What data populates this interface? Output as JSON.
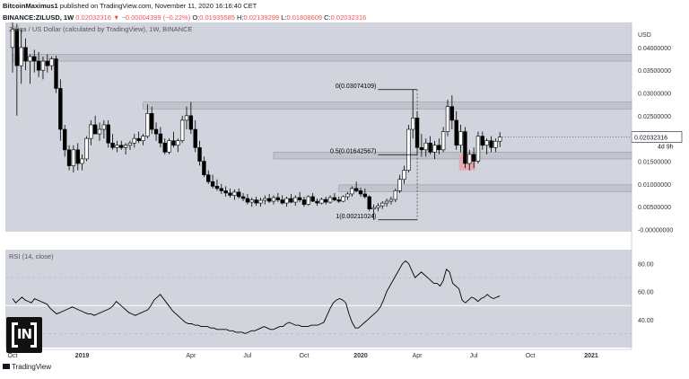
{
  "header": {
    "author": "BitcoinMaximus1",
    "published": "published on TradingView.com, November 11, 2020 16:16:40 CET",
    "symbol": "BINANCE:ZILUSD, 1W",
    "last": "0.02032316",
    "change": "▼ −0.00004399 (−0.22%)",
    "o_label": "O:",
    "o_value": "0.01935585",
    "h_label": "H:",
    "h_value": "0.02139299",
    "l_label": "L:",
    "l_value": "0.01808609",
    "c_label": "C:",
    "c_value": "0.02032316"
  },
  "colors": {
    "pane_bg": "#d1d4dc",
    "up_body": "#ffffff",
    "down_body": "#000000",
    "candle_outline": "#000000",
    "zone_fill": "#c1c4cc",
    "red_box": "#e9a3aa",
    "line": "#000000"
  },
  "chart_data": [
    {
      "type": "candlestick",
      "title": "Zilliqa / US Dollar (calculated by TradingView), 1W, BINANCE",
      "y_axis_label": "USD",
      "yticks": [
        "0.04000000",
        "0.03500000",
        "0.03000000",
        "0.02500000",
        "0.01500000",
        "0.01000000",
        "0.00500000",
        "-0.00000000"
      ],
      "ylim": [
        -0.0005,
        0.0455
      ],
      "price_label": "0.02032316",
      "countdown_label": "4d 9h",
      "xticks": [
        "Oct",
        "2019",
        "Apr",
        "Jul",
        "Oct",
        "2020",
        "Apr",
        "Jul",
        "Oct",
        "2021"
      ],
      "xticks_week": [
        0,
        16,
        41,
        54,
        67,
        80,
        93,
        106,
        119,
        133
      ],
      "candles": [
        {
          "o": 0.04,
          "h": 0.0455,
          "l": 0.0345,
          "c": 0.044
        },
        {
          "o": 0.044,
          "h": 0.0452,
          "l": 0.025,
          "c": 0.036
        },
        {
          "o": 0.036,
          "h": 0.044,
          "l": 0.032,
          "c": 0.04
        },
        {
          "o": 0.04,
          "h": 0.042,
          "l": 0.035,
          "c": 0.037
        },
        {
          "o": 0.037,
          "h": 0.0385,
          "l": 0.032,
          "c": 0.038
        },
        {
          "o": 0.038,
          "h": 0.0395,
          "l": 0.0345,
          "c": 0.037
        },
        {
          "o": 0.037,
          "h": 0.039,
          "l": 0.0335,
          "c": 0.035
        },
        {
          "o": 0.035,
          "h": 0.038,
          "l": 0.033,
          "c": 0.037
        },
        {
          "o": 0.037,
          "h": 0.0385,
          "l": 0.0345,
          "c": 0.036
        },
        {
          "o": 0.036,
          "h": 0.038,
          "l": 0.035,
          "c": 0.0375
        },
        {
          "o": 0.0375,
          "h": 0.0382,
          "l": 0.03,
          "c": 0.031
        },
        {
          "o": 0.031,
          "h": 0.033,
          "l": 0.0195,
          "c": 0.022
        },
        {
          "o": 0.022,
          "h": 0.023,
          "l": 0.016,
          "c": 0.0175
        },
        {
          "o": 0.0175,
          "h": 0.0185,
          "l": 0.013,
          "c": 0.014
        },
        {
          "o": 0.014,
          "h": 0.0185,
          "l": 0.0125,
          "c": 0.0175
        },
        {
          "o": 0.0175,
          "h": 0.019,
          "l": 0.013,
          "c": 0.0145
        },
        {
          "o": 0.0145,
          "h": 0.0165,
          "l": 0.013,
          "c": 0.0155
        },
        {
          "o": 0.0155,
          "h": 0.0205,
          "l": 0.015,
          "c": 0.02
        },
        {
          "o": 0.02,
          "h": 0.024,
          "l": 0.0185,
          "c": 0.023
        },
        {
          "o": 0.023,
          "h": 0.025,
          "l": 0.021,
          "c": 0.021
        },
        {
          "o": 0.021,
          "h": 0.0235,
          "l": 0.0195,
          "c": 0.022
        },
        {
          "o": 0.022,
          "h": 0.024,
          "l": 0.02,
          "c": 0.023
        },
        {
          "o": 0.023,
          "h": 0.024,
          "l": 0.018,
          "c": 0.019
        },
        {
          "o": 0.019,
          "h": 0.021,
          "l": 0.0175,
          "c": 0.018
        },
        {
          "o": 0.018,
          "h": 0.0195,
          "l": 0.017,
          "c": 0.0185
        },
        {
          "o": 0.0185,
          "h": 0.0195,
          "l": 0.0175,
          "c": 0.018
        },
        {
          "o": 0.018,
          "h": 0.019,
          "l": 0.0165,
          "c": 0.0185
        },
        {
          "o": 0.0185,
          "h": 0.0195,
          "l": 0.0175,
          "c": 0.019
        },
        {
          "o": 0.019,
          "h": 0.021,
          "l": 0.018,
          "c": 0.02
        },
        {
          "o": 0.02,
          "h": 0.0215,
          "l": 0.019,
          "c": 0.0195
        },
        {
          "o": 0.0195,
          "h": 0.021,
          "l": 0.0185,
          "c": 0.0205
        },
        {
          "o": 0.0205,
          "h": 0.0275,
          "l": 0.02,
          "c": 0.0255
        },
        {
          "o": 0.0255,
          "h": 0.027,
          "l": 0.021,
          "c": 0.022
        },
        {
          "o": 0.022,
          "h": 0.0235,
          "l": 0.0195,
          "c": 0.021
        },
        {
          "o": 0.021,
          "h": 0.0225,
          "l": 0.018,
          "c": 0.019
        },
        {
          "o": 0.019,
          "h": 0.02,
          "l": 0.0165,
          "c": 0.017
        },
        {
          "o": 0.017,
          "h": 0.02,
          "l": 0.0165,
          "c": 0.0195
        },
        {
          "o": 0.0195,
          "h": 0.0215,
          "l": 0.018,
          "c": 0.0185
        },
        {
          "o": 0.0185,
          "h": 0.02,
          "l": 0.017,
          "c": 0.0195
        },
        {
          "o": 0.0195,
          "h": 0.025,
          "l": 0.019,
          "c": 0.024
        },
        {
          "o": 0.024,
          "h": 0.027,
          "l": 0.022,
          "c": 0.025
        },
        {
          "o": 0.025,
          "h": 0.028,
          "l": 0.021,
          "c": 0.022
        },
        {
          "o": 0.022,
          "h": 0.024,
          "l": 0.017,
          "c": 0.018
        },
        {
          "o": 0.018,
          "h": 0.0195,
          "l": 0.014,
          "c": 0.015
        },
        {
          "o": 0.015,
          "h": 0.016,
          "l": 0.0115,
          "c": 0.012
        },
        {
          "o": 0.012,
          "h": 0.013,
          "l": 0.01,
          "c": 0.0105
        },
        {
          "o": 0.0105,
          "h": 0.012,
          "l": 0.009,
          "c": 0.0095
        },
        {
          "o": 0.0095,
          "h": 0.011,
          "l": 0.0085,
          "c": 0.009
        },
        {
          "o": 0.009,
          "h": 0.01,
          "l": 0.0078,
          "c": 0.0085
        },
        {
          "o": 0.0085,
          "h": 0.0095,
          "l": 0.0072,
          "c": 0.008
        },
        {
          "o": 0.008,
          "h": 0.009,
          "l": 0.007,
          "c": 0.0075
        },
        {
          "o": 0.0075,
          "h": 0.0088,
          "l": 0.0065,
          "c": 0.0082
        },
        {
          "o": 0.0082,
          "h": 0.009,
          "l": 0.0068,
          "c": 0.0072
        },
        {
          "o": 0.0072,
          "h": 0.008,
          "l": 0.0062,
          "c": 0.0068
        },
        {
          "o": 0.0068,
          "h": 0.0078,
          "l": 0.0055,
          "c": 0.006
        },
        {
          "o": 0.006,
          "h": 0.007,
          "l": 0.005,
          "c": 0.0065
        },
        {
          "o": 0.0065,
          "h": 0.0072,
          "l": 0.0052,
          "c": 0.0058
        },
        {
          "o": 0.0058,
          "h": 0.007,
          "l": 0.005,
          "c": 0.0064
        },
        {
          "o": 0.0064,
          "h": 0.0075,
          "l": 0.0055,
          "c": 0.0068
        },
        {
          "o": 0.0068,
          "h": 0.0078,
          "l": 0.0058,
          "c": 0.0062
        },
        {
          "o": 0.0062,
          "h": 0.0075,
          "l": 0.0055,
          "c": 0.007
        },
        {
          "o": 0.007,
          "h": 0.008,
          "l": 0.006,
          "c": 0.0065
        },
        {
          "o": 0.0065,
          "h": 0.0075,
          "l": 0.0055,
          "c": 0.0058
        },
        {
          "o": 0.0058,
          "h": 0.0072,
          "l": 0.005,
          "c": 0.0068
        },
        {
          "o": 0.0068,
          "h": 0.0078,
          "l": 0.0058,
          "c": 0.006
        },
        {
          "o": 0.006,
          "h": 0.0075,
          "l": 0.0052,
          "c": 0.007
        },
        {
          "o": 0.007,
          "h": 0.0082,
          "l": 0.006,
          "c": 0.0065
        },
        {
          "o": 0.0065,
          "h": 0.0072,
          "l": 0.005,
          "c": 0.0055
        },
        {
          "o": 0.0055,
          "h": 0.0075,
          "l": 0.0052,
          "c": 0.0072
        },
        {
          "o": 0.0072,
          "h": 0.008,
          "l": 0.006,
          "c": 0.0062
        },
        {
          "o": 0.0062,
          "h": 0.0068,
          "l": 0.0052,
          "c": 0.0058
        },
        {
          "o": 0.0058,
          "h": 0.007,
          "l": 0.0055,
          "c": 0.0066
        },
        {
          "o": 0.0066,
          "h": 0.0072,
          "l": 0.0055,
          "c": 0.006
        },
        {
          "o": 0.006,
          "h": 0.0075,
          "l": 0.0057,
          "c": 0.007
        },
        {
          "o": 0.007,
          "h": 0.008,
          "l": 0.0062,
          "c": 0.0065
        },
        {
          "o": 0.0065,
          "h": 0.0072,
          "l": 0.0058,
          "c": 0.0062
        },
        {
          "o": 0.0062,
          "h": 0.0075,
          "l": 0.006,
          "c": 0.0072
        },
        {
          "o": 0.0072,
          "h": 0.0082,
          "l": 0.0065,
          "c": 0.0078
        },
        {
          "o": 0.0078,
          "h": 0.0095,
          "l": 0.0072,
          "c": 0.009
        },
        {
          "o": 0.009,
          "h": 0.0105,
          "l": 0.0082,
          "c": 0.0085
        },
        {
          "o": 0.0085,
          "h": 0.0092,
          "l": 0.0072,
          "c": 0.0078
        },
        {
          "o": 0.0078,
          "h": 0.009,
          "l": 0.0068,
          "c": 0.0072
        },
        {
          "o": 0.0072,
          "h": 0.0075,
          "l": 0.004,
          "c": 0.0045
        },
        {
          "o": 0.0045,
          "h": 0.0055,
          "l": 0.0021,
          "c": 0.0048
        },
        {
          "o": 0.0048,
          "h": 0.0058,
          "l": 0.004,
          "c": 0.0052
        },
        {
          "o": 0.0052,
          "h": 0.0062,
          "l": 0.0045,
          "c": 0.0058
        },
        {
          "o": 0.0058,
          "h": 0.0068,
          "l": 0.005,
          "c": 0.0062
        },
        {
          "o": 0.0062,
          "h": 0.0072,
          "l": 0.0055,
          "c": 0.0066
        },
        {
          "o": 0.0066,
          "h": 0.009,
          "l": 0.006,
          "c": 0.0085
        },
        {
          "o": 0.0085,
          "h": 0.012,
          "l": 0.008,
          "c": 0.011
        },
        {
          "o": 0.011,
          "h": 0.014,
          "l": 0.01,
          "c": 0.013
        },
        {
          "o": 0.013,
          "h": 0.023,
          "l": 0.0125,
          "c": 0.022
        },
        {
          "o": 0.022,
          "h": 0.0307,
          "l": 0.02,
          "c": 0.0245
        },
        {
          "o": 0.0245,
          "h": 0.026,
          "l": 0.0165,
          "c": 0.018
        },
        {
          "o": 0.018,
          "h": 0.021,
          "l": 0.016,
          "c": 0.0175
        },
        {
          "o": 0.0175,
          "h": 0.02,
          "l": 0.016,
          "c": 0.019
        },
        {
          "o": 0.019,
          "h": 0.0205,
          "l": 0.0165,
          "c": 0.017
        },
        {
          "o": 0.017,
          "h": 0.0195,
          "l": 0.0155,
          "c": 0.0185
        },
        {
          "o": 0.0185,
          "h": 0.02,
          "l": 0.0165,
          "c": 0.0175
        },
        {
          "o": 0.0175,
          "h": 0.0225,
          "l": 0.017,
          "c": 0.0215
        },
        {
          "o": 0.0215,
          "h": 0.0285,
          "l": 0.0205,
          "c": 0.027
        },
        {
          "o": 0.027,
          "h": 0.0295,
          "l": 0.022,
          "c": 0.024
        },
        {
          "o": 0.024,
          "h": 0.026,
          "l": 0.0175,
          "c": 0.0185
        },
        {
          "o": 0.0185,
          "h": 0.023,
          "l": 0.017,
          "c": 0.0215
        },
        {
          "o": 0.0215,
          "h": 0.0225,
          "l": 0.0135,
          "c": 0.0145
        },
        {
          "o": 0.0145,
          "h": 0.0175,
          "l": 0.013,
          "c": 0.0165
        },
        {
          "o": 0.0165,
          "h": 0.018,
          "l": 0.0135,
          "c": 0.015
        },
        {
          "o": 0.015,
          "h": 0.0215,
          "l": 0.0145,
          "c": 0.0205
        },
        {
          "o": 0.0205,
          "h": 0.0215,
          "l": 0.0175,
          "c": 0.0185
        },
        {
          "o": 0.0185,
          "h": 0.02,
          "l": 0.0165,
          "c": 0.0195
        },
        {
          "o": 0.0195,
          "h": 0.0205,
          "l": 0.017,
          "c": 0.018
        },
        {
          "o": 0.018,
          "h": 0.02,
          "l": 0.017,
          "c": 0.0194
        },
        {
          "o": 0.0194,
          "h": 0.0214,
          "l": 0.0181,
          "c": 0.0203
        }
      ],
      "zones": [
        {
          "from": 0.037,
          "to": 0.0385,
          "start_week": 0
        },
        {
          "from": 0.0265,
          "to": 0.028,
          "start_week": 30
        },
        {
          "from": 0.0155,
          "to": 0.017,
          "start_week": 60
        },
        {
          "from": 0.0083,
          "to": 0.0098,
          "start_week": 75
        }
      ],
      "annotations": [
        {
          "text": "0(0.03074109)",
          "price": 0.03074109,
          "from_week": 84,
          "to_week": 93
        },
        {
          "text": "0.5(0.01642567)",
          "price": 0.01642567,
          "from_week": 84,
          "to_week": 93
        },
        {
          "text": "1(0.00211024)",
          "price": 0.00211024,
          "from_week": 84,
          "to_week": 93
        }
      ],
      "red_box": {
        "week_from": 103,
        "week_to": 106,
        "price_from": 0.013,
        "price_to": 0.0165
      }
    },
    {
      "type": "line",
      "title": "RSI (14, close)",
      "yticks": [
        80,
        60,
        40
      ],
      "ylim": [
        20,
        90
      ],
      "levels": [
        70,
        50,
        30
      ],
      "values": [
        55,
        52,
        54,
        56,
        54,
        53,
        52,
        55,
        54,
        53,
        52,
        51,
        48,
        46,
        44,
        45,
        46,
        47,
        48,
        49,
        48,
        47,
        46,
        45,
        44,
        44,
        43,
        44,
        45,
        46,
        47,
        48,
        50,
        53,
        51,
        49,
        47,
        45,
        44,
        43,
        44,
        45,
        46,
        47,
        50,
        54,
        56,
        58,
        55,
        52,
        49,
        46,
        44,
        42,
        40,
        38,
        37,
        37,
        36,
        36,
        35,
        35,
        35,
        34,
        34,
        33,
        33,
        33,
        33,
        32,
        32,
        31,
        31,
        31,
        30,
        31,
        32,
        32,
        33,
        34,
        35,
        34,
        33,
        33,
        34,
        35,
        35,
        37,
        38,
        37,
        36,
        36,
        35,
        35,
        35,
        36,
        36,
        36,
        37,
        38,
        43,
        48,
        52,
        54,
        55,
        54,
        52,
        44,
        38,
        34,
        34,
        36,
        38,
        40,
        42,
        44,
        46,
        49,
        54,
        60,
        64,
        68,
        72,
        76,
        80,
        82,
        80,
        75,
        70,
        72,
        74,
        72,
        70,
        68,
        66,
        66,
        64,
        68,
        76,
        74,
        66,
        64,
        62,
        54,
        52,
        54,
        56,
        55,
        53,
        55,
        56,
        58,
        56,
        55,
        56,
        57
      ],
      "xticks": [
        "Oct",
        "2019",
        "Apr",
        "Jul",
        "Oct",
        "2020",
        "Apr",
        "Jul",
        "Oct",
        "2021"
      ]
    }
  ],
  "branding": {
    "badge_text": "IN",
    "tradingview_label": "TradingView"
  }
}
